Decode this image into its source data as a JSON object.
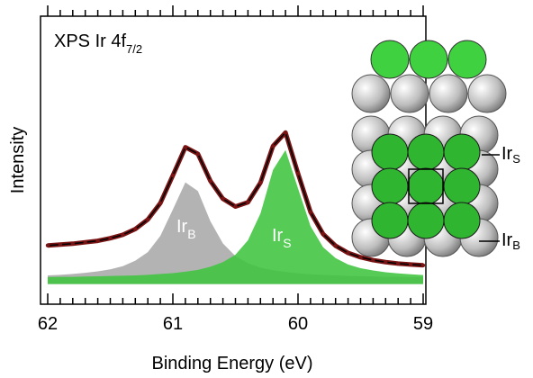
{
  "chart_data": {
    "type": "line",
    "title": "XPS Ir 4f",
    "title_sub": "7/2",
    "x_label": "Binding Energy (eV)",
    "y_label": "Intensity",
    "x": [
      62.0,
      61.9,
      61.8,
      61.7,
      61.6,
      61.5,
      61.4,
      61.3,
      61.2,
      61.1,
      61.0,
      60.9,
      60.8,
      60.7,
      60.6,
      60.5,
      60.4,
      60.3,
      60.2,
      60.1,
      60.0,
      59.9,
      59.8,
      59.7,
      59.6,
      59.5,
      59.4,
      59.3,
      59.2,
      59.1,
      59.0
    ],
    "series": [
      {
        "style": "area",
        "color": "#a9a9a9",
        "values": [
          3.0,
          3.2,
          3.5,
          3.9,
          4.4,
          5.1,
          6.2,
          8.1,
          11.1,
          16.7,
          25.9,
          35.3,
          32.3,
          21.8,
          14.1,
          9.7,
          7.2,
          5.7,
          4.8,
          4.2,
          3.7,
          3.4,
          3.2,
          3.0,
          2.8,
          2.7,
          2.6,
          2.5,
          2.5,
          2.4,
          2.4
        ]
      },
      {
        "style": "area",
        "color": "#3fc43f",
        "values": [
          2.4,
          2.5,
          2.5,
          2.6,
          2.7,
          2.8,
          2.9,
          3.0,
          3.2,
          3.5,
          3.8,
          4.3,
          4.9,
          6.0,
          7.6,
          10.2,
          15.2,
          24.5,
          39.6,
          46.5,
          33.2,
          20.1,
          12.8,
          9.0,
          6.8,
          5.5,
          4.7,
          4.1,
          3.7,
          3.4,
          3.1
        ]
      },
      {
        "style": "points-line",
        "color": "#7a1414",
        "values": [
          13.4,
          13.7,
          14.0,
          14.5,
          15.0,
          15.9,
          17.1,
          19.1,
          22.4,
          28.1,
          37.7,
          47.5,
          45.2,
          35.8,
          29.6,
          26.9,
          28.4,
          35.2,
          47.9,
          52.6,
          38.4,
          25.0,
          17.4,
          13.3,
          10.8,
          9.3,
          8.3,
          7.6,
          7.1,
          6.8,
          6.5
        ]
      }
    ],
    "xlim": [
      62,
      59
    ],
    "ylim": [
      -7,
      93
    ],
    "xticks": [
      62,
      61,
      60,
      59
    ],
    "xminorticks": [
      61.9,
      61.8,
      61.7,
      61.6,
      61.5,
      61.4,
      61.3,
      61.2,
      61.1,
      60.9,
      60.8,
      60.7,
      60.6,
      60.5,
      60.4,
      60.3,
      60.2,
      60.1,
      59.9,
      59.8,
      59.7,
      59.6,
      59.5,
      59.4,
      59.3,
      59.2,
      59.1
    ],
    "peak_labels": [
      {
        "text": "Ir",
        "sub": "B"
      },
      {
        "text": "Ir",
        "sub": "S"
      }
    ],
    "model_labels": [
      {
        "text": "Ir",
        "sub": "S"
      },
      {
        "text": "Ir",
        "sub": "B"
      }
    ]
  }
}
